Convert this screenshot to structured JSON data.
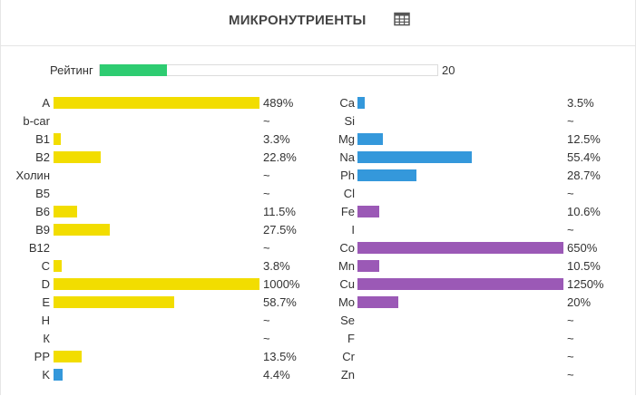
{
  "header": {
    "title": "МИКРОНУТРИЕНТЫ",
    "table_icon": "table-grid-icon"
  },
  "rating": {
    "label": "Рейтинг",
    "max_label": "20",
    "fill_fraction": 0.2,
    "color": "#2ecc71"
  },
  "colors": {
    "vitamin": "#f2dd00",
    "vitamin_blue": "#3498db",
    "mineral_blue": "#3498db",
    "mineral_purple": "#9b59b6"
  },
  "vitamins": [
    {
      "name": "A",
      "value": "489%",
      "fill": 1.0,
      "color": "#f2dd00"
    },
    {
      "name": "b-car",
      "value": "~",
      "fill": 0,
      "color": "#f2dd00"
    },
    {
      "name": "B1",
      "value": "3.3%",
      "fill": 0.033,
      "color": "#f2dd00"
    },
    {
      "name": "B2",
      "value": "22.8%",
      "fill": 0.228,
      "color": "#f2dd00"
    },
    {
      "name": "Холин",
      "value": "~",
      "fill": 0,
      "color": "#f2dd00"
    },
    {
      "name": "B5",
      "value": "~",
      "fill": 0,
      "color": "#f2dd00"
    },
    {
      "name": "B6",
      "value": "11.5%",
      "fill": 0.115,
      "color": "#f2dd00"
    },
    {
      "name": "B9",
      "value": "27.5%",
      "fill": 0.275,
      "color": "#f2dd00"
    },
    {
      "name": "B12",
      "value": "~",
      "fill": 0,
      "color": "#f2dd00"
    },
    {
      "name": "C",
      "value": "3.8%",
      "fill": 0.038,
      "color": "#f2dd00"
    },
    {
      "name": "D",
      "value": "1000%",
      "fill": 1.0,
      "color": "#f2dd00"
    },
    {
      "name": "E",
      "value": "58.7%",
      "fill": 0.587,
      "color": "#f2dd00"
    },
    {
      "name": "H",
      "value": "~",
      "fill": 0,
      "color": "#f2dd00"
    },
    {
      "name": "К",
      "value": "~",
      "fill": 0,
      "color": "#f2dd00"
    },
    {
      "name": "PP",
      "value": "13.5%",
      "fill": 0.135,
      "color": "#f2dd00"
    },
    {
      "name": "K",
      "value": "4.4%",
      "fill": 0.044,
      "color": "#3498db"
    }
  ],
  "minerals": [
    {
      "name": "Ca",
      "value": "3.5%",
      "fill": 0.035,
      "color": "#3498db"
    },
    {
      "name": "Si",
      "value": "~",
      "fill": 0,
      "color": "#3498db"
    },
    {
      "name": "Mg",
      "value": "12.5%",
      "fill": 0.125,
      "color": "#3498db"
    },
    {
      "name": "Na",
      "value": "55.4%",
      "fill": 0.554,
      "color": "#3498db"
    },
    {
      "name": "Ph",
      "value": "28.7%",
      "fill": 0.287,
      "color": "#3498db"
    },
    {
      "name": "Cl",
      "value": "~",
      "fill": 0,
      "color": "#3498db"
    },
    {
      "name": "Fe",
      "value": "10.6%",
      "fill": 0.106,
      "color": "#9b59b6"
    },
    {
      "name": "I",
      "value": "~",
      "fill": 0,
      "color": "#9b59b6"
    },
    {
      "name": "Co",
      "value": "650%",
      "fill": 1.0,
      "color": "#9b59b6"
    },
    {
      "name": "Mn",
      "value": "10.5%",
      "fill": 0.105,
      "color": "#9b59b6"
    },
    {
      "name": "Cu",
      "value": "1250%",
      "fill": 1.0,
      "color": "#9b59b6"
    },
    {
      "name": "Mo",
      "value": "20%",
      "fill": 0.2,
      "color": "#9b59b6"
    },
    {
      "name": "Se",
      "value": "~",
      "fill": 0,
      "color": "#9b59b6"
    },
    {
      "name": "F",
      "value": "~",
      "fill": 0,
      "color": "#9b59b6"
    },
    {
      "name": "Cr",
      "value": "~",
      "fill": 0,
      "color": "#9b59b6"
    },
    {
      "name": "Zn",
      "value": "~",
      "fill": 0,
      "color": "#9b59b6"
    }
  ]
}
